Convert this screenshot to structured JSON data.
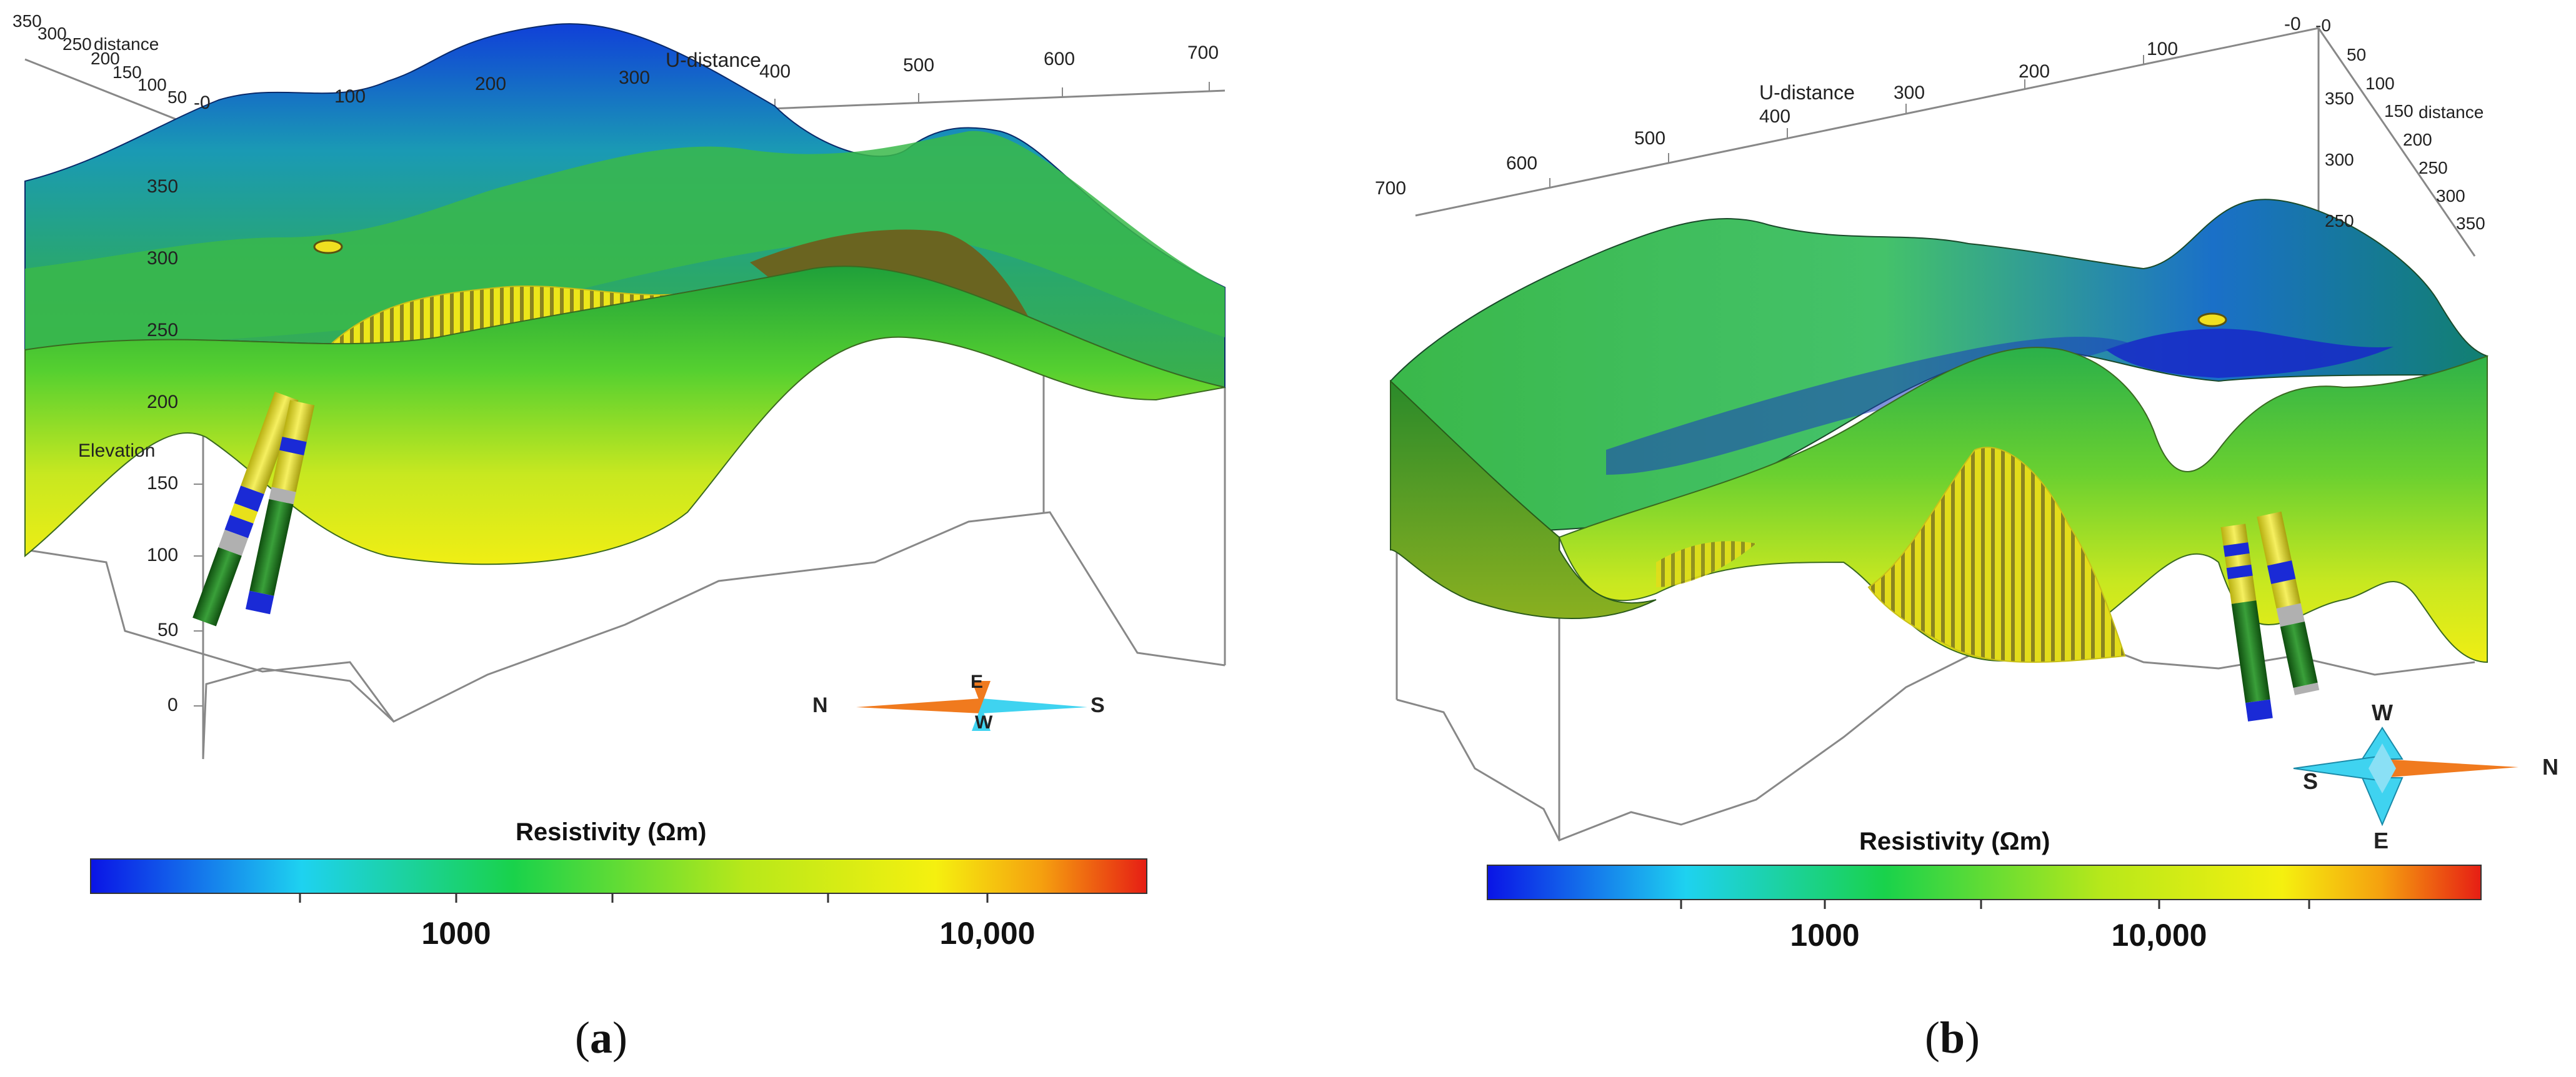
{
  "panel_a": {
    "subfigure_label": "a",
    "axes": {
      "u_label": "U-distance",
      "u_ticks": [
        "-0",
        "100",
        "200",
        "300",
        "400",
        "500",
        "600",
        "700"
      ],
      "v_label": "distance",
      "v_ticks": [
        "350",
        "300",
        "250",
        "200",
        "150",
        "100",
        "50"
      ],
      "z_label": "Elevation",
      "z_ticks": [
        "350",
        "300",
        "250",
        "200",
        "150",
        "100",
        "50",
        "0"
      ]
    },
    "compass": {
      "n": "N",
      "s": "S",
      "e": "E",
      "w": "W"
    },
    "colorbar": {
      "title": "Resistivity  (Ωm)",
      "tick_1000": "1000",
      "tick_10000": "10,000"
    }
  },
  "panel_b": {
    "subfigure_label": "b",
    "axes": {
      "u_label": "U-distance",
      "u_ticks": [
        "-0",
        "100",
        "200",
        "300",
        "400",
        "500",
        "600",
        "700"
      ],
      "v_label": "distance",
      "v_ticks": [
        "-0",
        "50",
        "100",
        "150",
        "200",
        "250",
        "300",
        "350"
      ],
      "z_ticks": [
        "350",
        "300",
        "250"
      ]
    },
    "compass": {
      "n": "N",
      "s": "S",
      "e": "E",
      "w": "W"
    },
    "colorbar": {
      "title": "Resistivity  (Ωm)",
      "tick_1000": "1000",
      "tick_10000": "10,000"
    }
  },
  "colors": {
    "low_resistivity": "#0a14e6",
    "mid_resistivity": "#19d24b",
    "high_resistivity": "#f5f00f",
    "max_resistivity": "#e61e14",
    "borehole_yellow": "#e8e01a",
    "borehole_green": "#1f7a1f",
    "borehole_blue": "#1a2ad6",
    "compass_orange": "#f07a1e",
    "compass_cyan": "#3fd3f0"
  }
}
